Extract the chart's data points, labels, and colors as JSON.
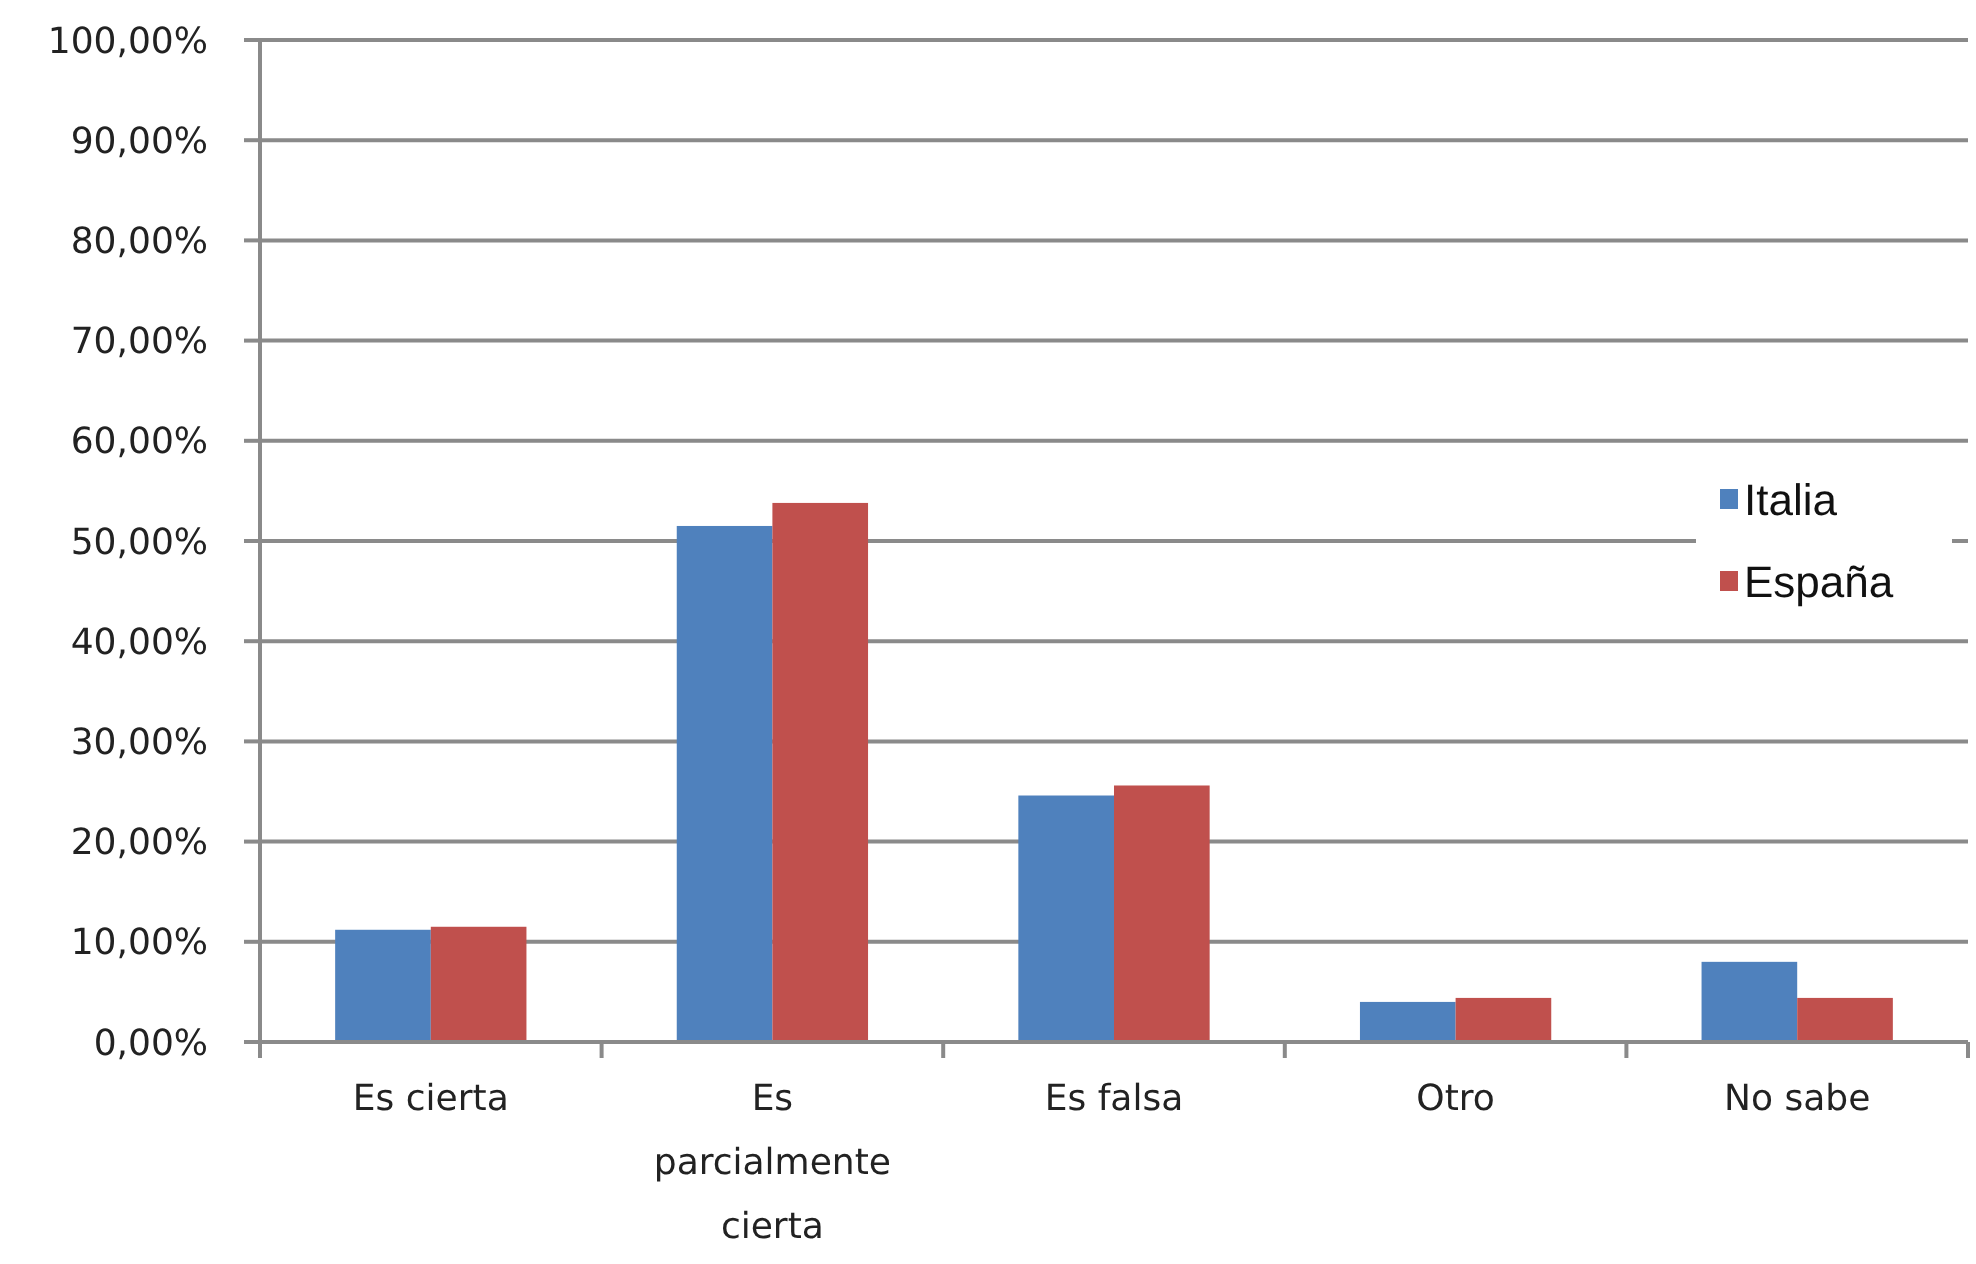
{
  "chart_data": {
    "type": "bar",
    "categories": [
      "Es cierta",
      "Es parcialmente cierta",
      "Es falsa",
      "Otro",
      "No sabe"
    ],
    "series": [
      {
        "name": "Italia",
        "color": "#4f81bd",
        "values": [
          11.2,
          51.5,
          24.6,
          4.0,
          8.0
        ]
      },
      {
        "name": "España",
        "color": "#c0504d",
        "values": [
          11.5,
          53.8,
          25.6,
          4.4,
          4.4
        ]
      }
    ],
    "ylim": [
      0,
      100
    ],
    "yticks": [
      {
        "value": 0,
        "label": "0,00%"
      },
      {
        "value": 10,
        "label": "10,00%"
      },
      {
        "value": 20,
        "label": "20,00%"
      },
      {
        "value": 30,
        "label": "30,00%"
      },
      {
        "value": 40,
        "label": "40,00%"
      },
      {
        "value": 50,
        "label": "50,00%"
      },
      {
        "value": 60,
        "label": "60,00%"
      },
      {
        "value": 70,
        "label": "70,00%"
      },
      {
        "value": 80,
        "label": "80,00%"
      },
      {
        "value": 90,
        "label": "90,00%"
      },
      {
        "value": 100,
        "label": "100,00%"
      }
    ],
    "grid": "y",
    "legend": "right"
  }
}
